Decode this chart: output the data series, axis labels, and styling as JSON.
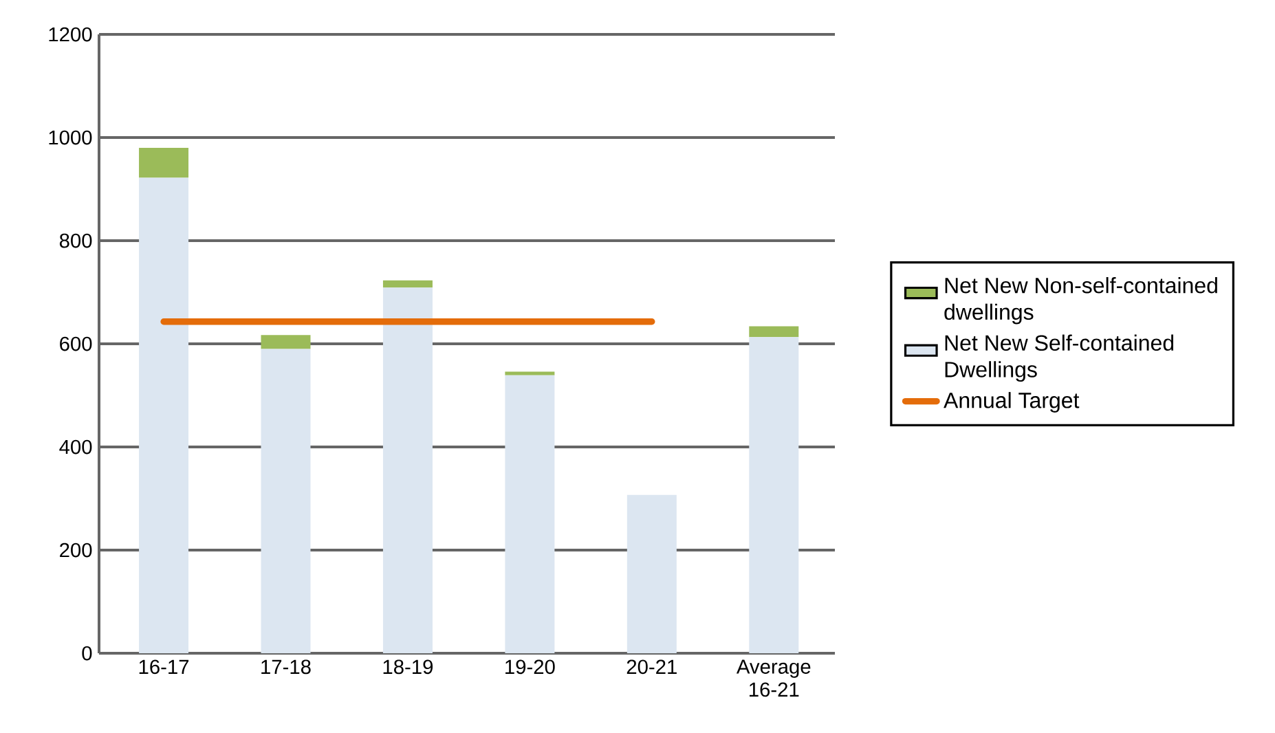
{
  "chart_data": {
    "type": "bar",
    "stacked": true,
    "categories": [
      "16-17",
      "17-18",
      "18-19",
      "19-20",
      "20-21",
      "Average 16-21"
    ],
    "series": [
      {
        "name": "Net New Self-contained Dwellings",
        "color": "#dce6f1",
        "values": [
          922,
          590,
          709,
          539,
          307,
          613
        ]
      },
      {
        "name": "Net New Non-self-contained dwellings",
        "color": "#9bbb59",
        "values": [
          58,
          27,
          14,
          7,
          0,
          21
        ]
      },
      {
        "name": "Annual Target",
        "type": "line",
        "color": "#e46c0a",
        "values": [
          643,
          643,
          643,
          643,
          643,
          null
        ]
      }
    ],
    "ylim": [
      0,
      1200
    ],
    "yticks": [
      0,
      200,
      400,
      600,
      800,
      1000,
      1200
    ],
    "grid": "y",
    "legend": "right"
  }
}
